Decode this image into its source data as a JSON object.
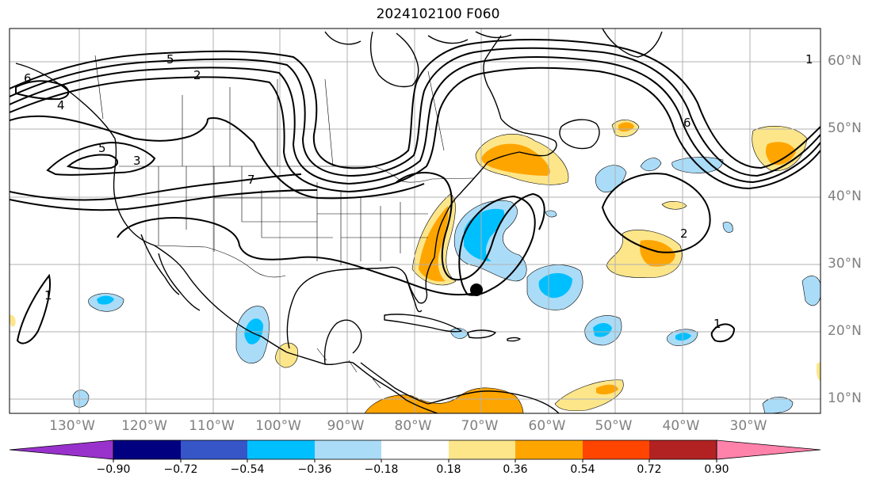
{
  "title": "2024102100 F060",
  "latitude_labels": [
    "60°N",
    "50°N",
    "40°N",
    "30°N",
    "20°N",
    "10°N"
  ],
  "longitude_labels": [
    "130°W",
    "120°W",
    "110°W",
    "100°W",
    "90°W",
    "80°W",
    "70°W",
    "60°W",
    "50°W",
    "40°W",
    "30°W"
  ],
  "contour_labels": [
    "5",
    "6",
    "4",
    "3",
    "2",
    "7",
    "6",
    "1",
    "1",
    "2",
    "1",
    "5"
  ],
  "colorbar": {
    "ticks": [
      "−0.90",
      "−0.72",
      "−0.54",
      "−0.36",
      "−0.18",
      "0.18",
      "0.36",
      "0.54",
      "0.72",
      "0.90"
    ],
    "colors": [
      "#9932cc",
      "#000080",
      "#3656c8",
      "#00bfff",
      "#aadcf8",
      "#ffffff",
      "#fde68a",
      "#ffa500",
      "#ff4500",
      "#b22222",
      "#ff82ab"
    ]
  },
  "storm_marker": {
    "lon": -70.5,
    "lat": 26.5
  }
}
